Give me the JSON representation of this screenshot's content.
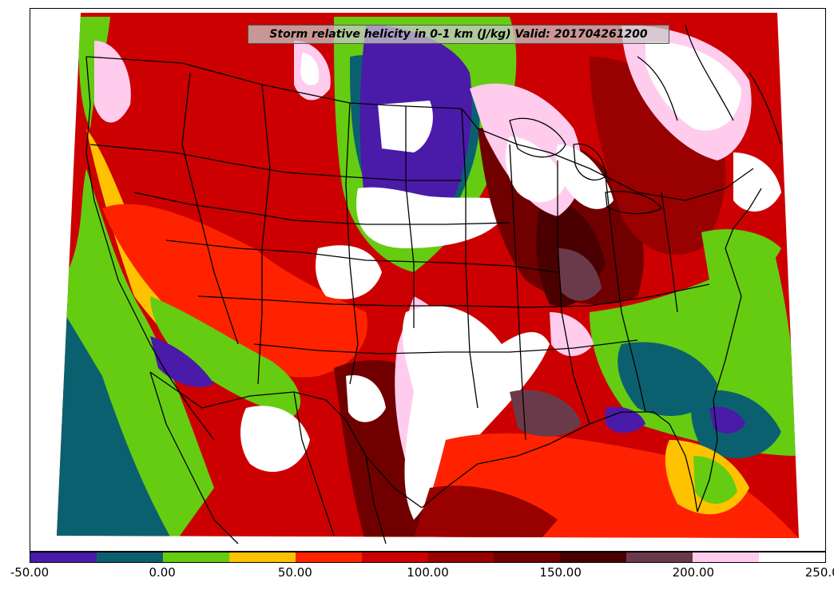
{
  "title": "Storm relative helicity in 0-1 km (J/kg) Valid: 201704261200",
  "colorbar": {
    "colors": [
      "#4a1aa8",
      "#0b6070",
      "#66cc11",
      "#ffc200",
      "#ff2200",
      "#cc0000",
      "#990000",
      "#700000",
      "#4a0000",
      "#6b3a4a",
      "#ffccee",
      "#ffffff"
    ],
    "labels": [
      "-50.00",
      "0.00",
      "50.00",
      "100.00",
      "150.00",
      "200.00",
      "250.00"
    ]
  },
  "legend": {
    "entries": [
      {
        "value": -50,
        "color": "#4a1aa8"
      },
      {
        "value": -25,
        "color": "#0b6070"
      },
      {
        "value": 0,
        "color": "#66cc11"
      },
      {
        "value": 25,
        "color": "#ffc200"
      },
      {
        "value": 50,
        "color": "#ff2200"
      },
      {
        "value": 75,
        "color": "#cc0000"
      },
      {
        "value": 100,
        "color": "#990000"
      },
      {
        "value": 125,
        "color": "#700000"
      },
      {
        "value": 150,
        "color": "#4a0000"
      },
      {
        "value": 175,
        "color": "#6b3a4a"
      },
      {
        "value": 200,
        "color": "#ffccee"
      },
      {
        "value": 225,
        "color": "#ffffff"
      }
    ]
  }
}
